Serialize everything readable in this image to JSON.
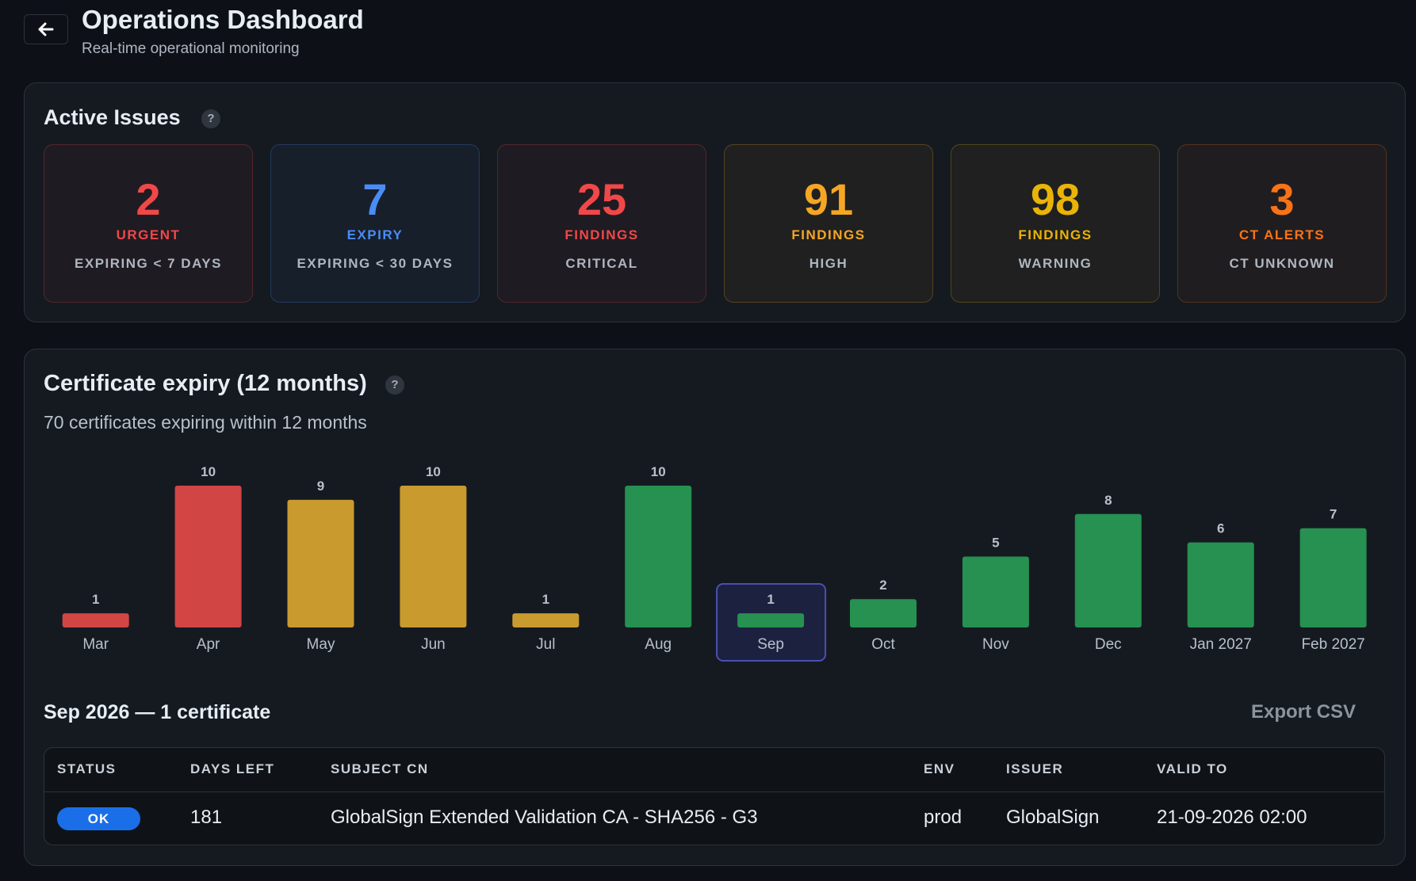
{
  "header": {
    "title": "Operations Dashboard",
    "subtitle": "Real-time operational monitoring"
  },
  "active_issues": {
    "title": "Active Issues",
    "help": "?",
    "tiles": [
      {
        "value": 2,
        "label": "URGENT",
        "sublabel": "EXPIRING < 7 DAYS",
        "color": "#f04848"
      },
      {
        "value": 7,
        "label": "EXPIRY",
        "sublabel": "EXPIRING < 30 DAYS",
        "color": "#4a8cf5"
      },
      {
        "value": 25,
        "label": "FINDINGS",
        "sublabel": "CRITICAL",
        "color": "#f04848"
      },
      {
        "value": 91,
        "label": "FINDINGS",
        "sublabel": "HIGH",
        "color": "#f5a623"
      },
      {
        "value": 98,
        "label": "FINDINGS",
        "sublabel": "WARNING",
        "color": "#eab308"
      },
      {
        "value": 3,
        "label": "CT ALERTS",
        "sublabel": "CT UNKNOWN",
        "color": "#f97316"
      }
    ]
  },
  "chart_data": {
    "type": "bar",
    "title": "Certificate expiry (12 months)",
    "help": "?",
    "subtitle": "70 certificates expiring within 12 months",
    "categories": [
      "Mar",
      "Apr",
      "May",
      "Jun",
      "Jul",
      "Aug",
      "Sep",
      "Oct",
      "Nov",
      "Dec",
      "Jan 2027",
      "Feb 2027"
    ],
    "values": [
      1,
      10,
      9,
      10,
      1,
      10,
      1,
      2,
      5,
      8,
      6,
      7
    ],
    "colors": [
      "#d24545",
      "#d24545",
      "#c99a2e",
      "#c99a2e",
      "#c99a2e",
      "#269150",
      "#269150",
      "#269150",
      "#269150",
      "#269150",
      "#269150",
      "#269150"
    ],
    "ylim": [
      0,
      10
    ],
    "selected": 6
  },
  "detail": {
    "title": "Sep 2026 — 1 certificate",
    "export_label": "Export CSV",
    "table": {
      "columns": [
        "STATUS",
        "DAYS LEFT",
        "SUBJECT CN",
        "ENV",
        "ISSUER",
        "VALID TO"
      ],
      "rows": [
        [
          "OK",
          181,
          "GlobalSign Extended Validation CA - SHA256 - G3",
          "prod",
          "GlobalSign",
          "21-09-2026 02:00"
        ]
      ]
    }
  }
}
